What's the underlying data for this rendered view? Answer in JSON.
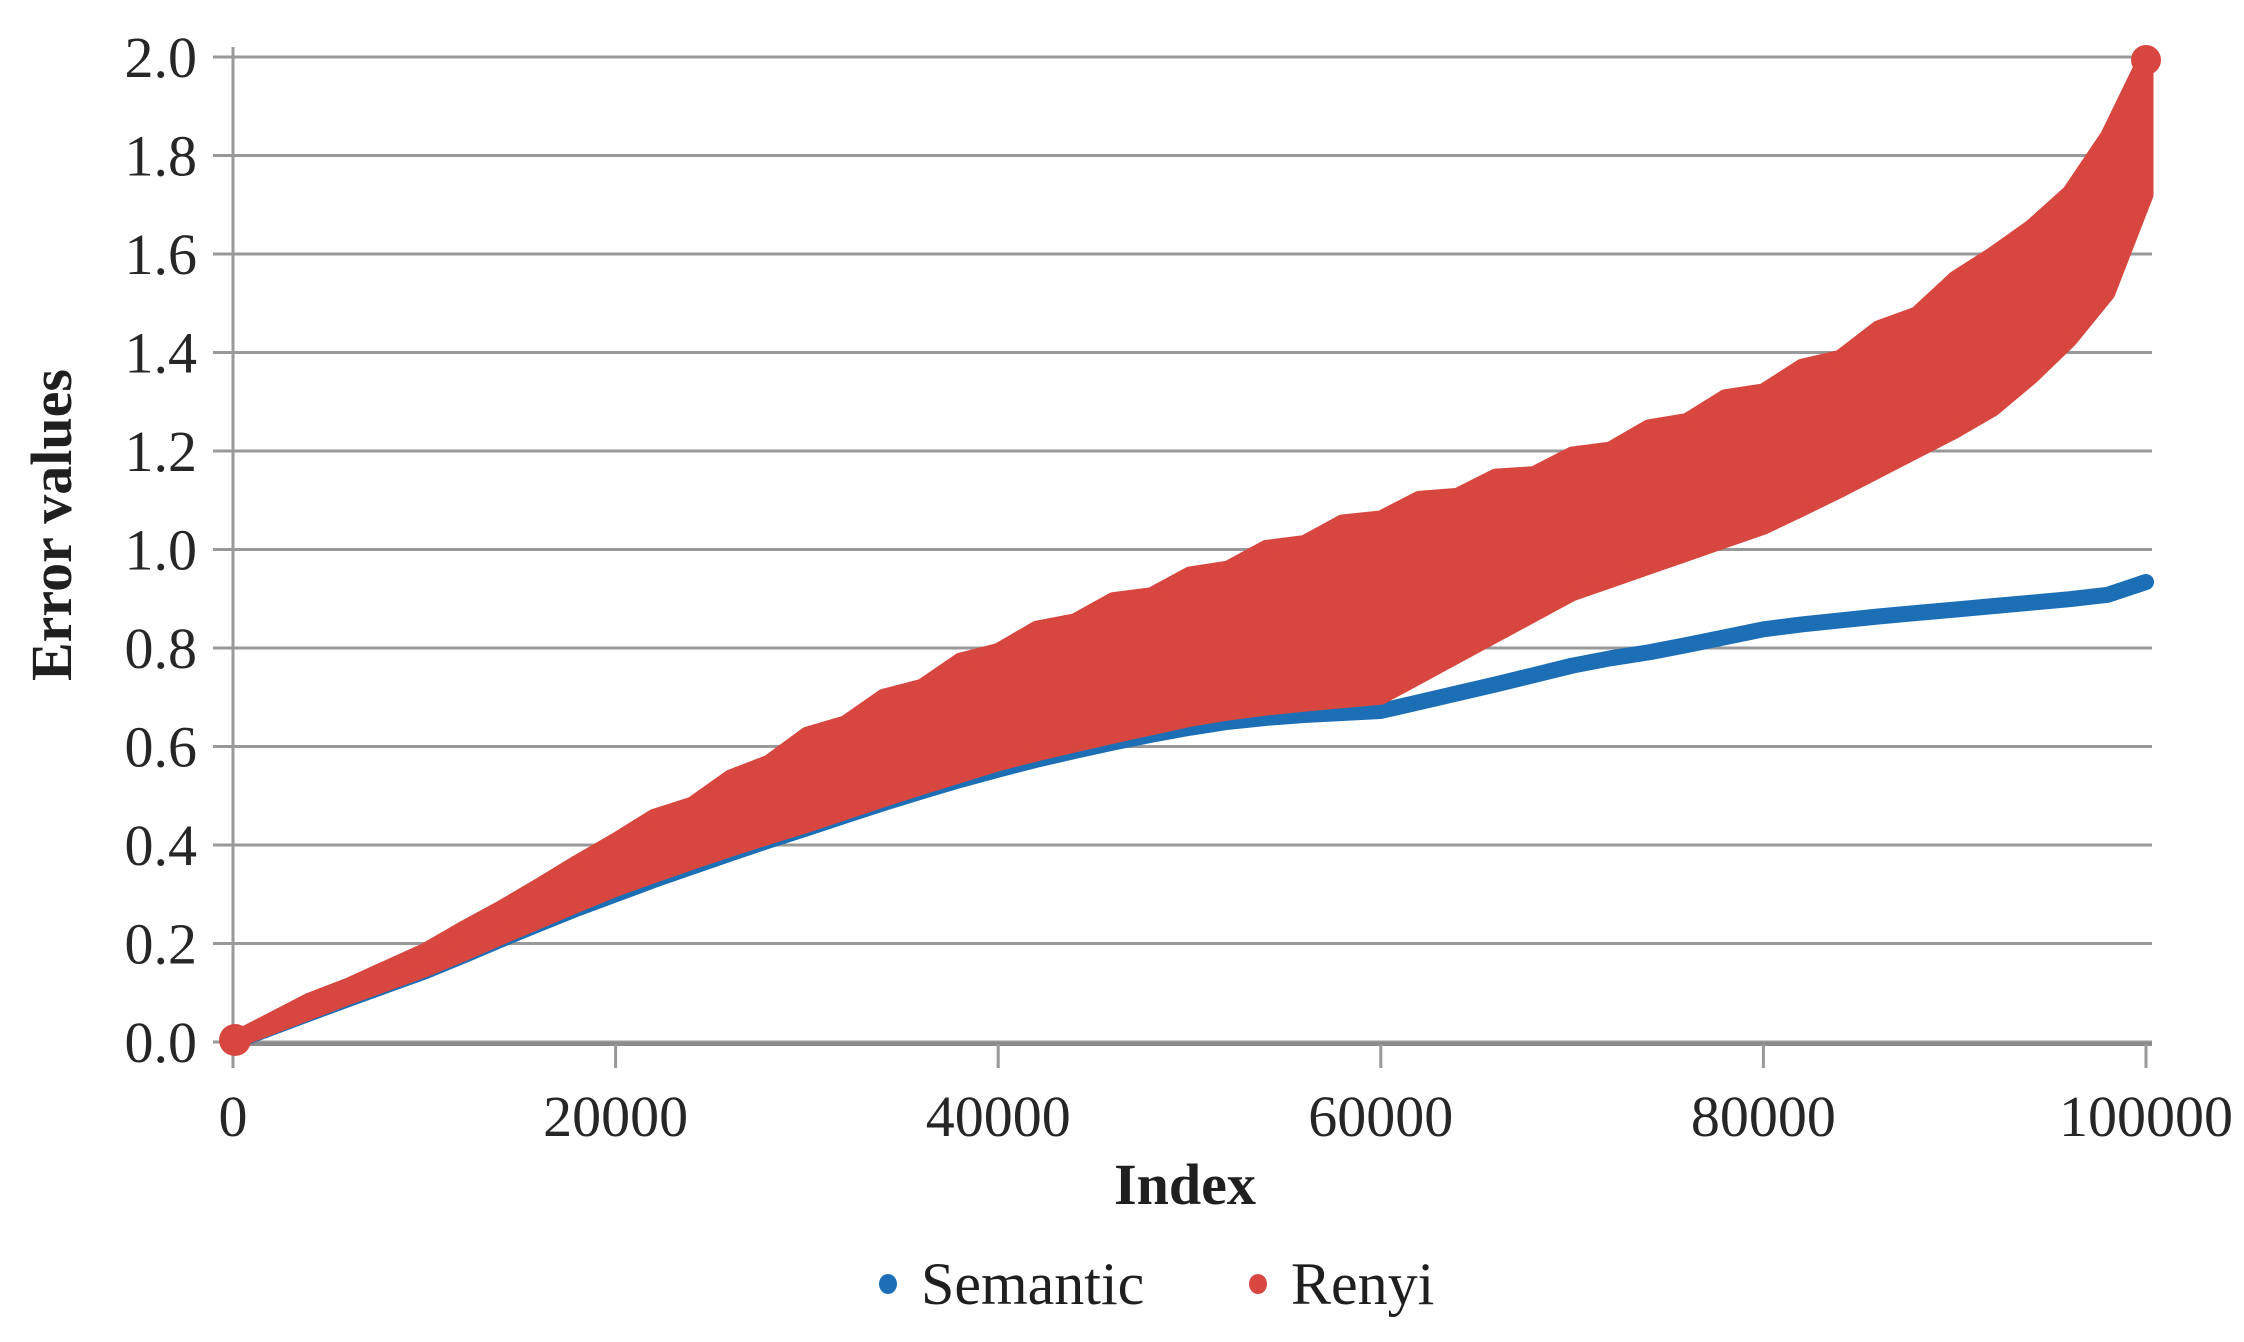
{
  "figure": {
    "y_axis_title": "Error values",
    "x_axis_title": "Index",
    "legend": [
      {
        "label": "Semantic",
        "color": "#1C6FB5"
      },
      {
        "label": "Renyi",
        "color": "#D8473F"
      }
    ],
    "background": "#ffffff",
    "gridline_color": "#999999",
    "text_color": "#262626"
  },
  "chart_data": {
    "type": "scatter",
    "title": "",
    "xlabel": "Index",
    "ylabel": "Error values",
    "xlim": [
      0,
      100000
    ],
    "ylim": [
      0.0,
      2.0
    ],
    "x_ticks": [
      "0",
      "20000",
      "40000",
      "60000",
      "80000",
      "100000"
    ],
    "y_ticks": [
      "0.0",
      "0.2",
      "0.4",
      "0.6",
      "0.8",
      "1.0",
      "1.2",
      "1.4",
      "1.6",
      "1.8",
      "2.0"
    ],
    "grid": "horizontal",
    "legend_position": "bottom",
    "description": "Sorted (ascending) error values per index; Renyi forms a thick scatter band between a lower and upper envelope, Semantic is a thin curve that tracks the band bottom until ~55000 then separates and flattens.",
    "x": [
      0,
      2000,
      4000,
      6000,
      8000,
      10000,
      12000,
      14000,
      16000,
      18000,
      20000,
      22000,
      24000,
      26000,
      28000,
      30000,
      32000,
      34000,
      36000,
      38000,
      40000,
      42000,
      44000,
      46000,
      48000,
      50000,
      52000,
      54000,
      56000,
      58000,
      60000,
      62000,
      64000,
      66000,
      68000,
      70000,
      72000,
      74000,
      76000,
      78000,
      80000,
      82000,
      84000,
      86000,
      88000,
      90000,
      92000,
      94000,
      96000,
      98000,
      100000
    ],
    "series": [
      {
        "name": "Semantic",
        "style": "dot-line",
        "color": "#1C6FB5",
        "values": [
          0.0,
          0.029,
          0.058,
          0.087,
          0.115,
          0.143,
          0.175,
          0.208,
          0.24,
          0.271,
          0.3,
          0.329,
          0.356,
          0.383,
          0.409,
          0.434,
          0.46,
          0.485,
          0.509,
          0.532,
          0.553,
          0.573,
          0.591,
          0.608,
          0.624,
          0.638,
          0.65,
          0.658,
          0.664,
          0.668,
          0.672,
          0.69,
          0.708,
          0.726,
          0.745,
          0.764,
          0.779,
          0.791,
          0.806,
          0.822,
          0.838,
          0.848,
          0.856,
          0.864,
          0.871,
          0.878,
          0.885,
          0.892,
          0.899,
          0.908,
          0.934
        ]
      },
      {
        "name": "Renyi",
        "style": "scatter-band",
        "color": "#D8473F",
        "lower": [
          0.0,
          0.03,
          0.06,
          0.09,
          0.118,
          0.146,
          0.178,
          0.212,
          0.245,
          0.278,
          0.31,
          0.338,
          0.365,
          0.391,
          0.416,
          0.44,
          0.466,
          0.492,
          0.517,
          0.541,
          0.565,
          0.585,
          0.603,
          0.621,
          0.638,
          0.655,
          0.668,
          0.678,
          0.686,
          0.693,
          0.7,
          0.742,
          0.784,
          0.826,
          0.868,
          0.91,
          0.937,
          0.964,
          0.991,
          1.018,
          1.045,
          1.082,
          1.12,
          1.16,
          1.2,
          1.24,
          1.285,
          1.35,
          1.425,
          1.52,
          1.72
        ],
        "upper": [
          0.005,
          0.045,
          0.085,
          0.115,
          0.15,
          0.185,
          0.23,
          0.272,
          0.318,
          0.365,
          0.41,
          0.458,
          0.483,
          0.538,
          0.568,
          0.625,
          0.648,
          0.702,
          0.722,
          0.775,
          0.795,
          0.84,
          0.855,
          0.898,
          0.908,
          0.95,
          0.962,
          1.004,
          1.014,
          1.056,
          1.064,
          1.104,
          1.11,
          1.149,
          1.154,
          1.194,
          1.204,
          1.249,
          1.262,
          1.31,
          1.322,
          1.372,
          1.39,
          1.45,
          1.478,
          1.55,
          1.6,
          1.655,
          1.725,
          1.84,
          2.0
        ]
      }
    ]
  }
}
